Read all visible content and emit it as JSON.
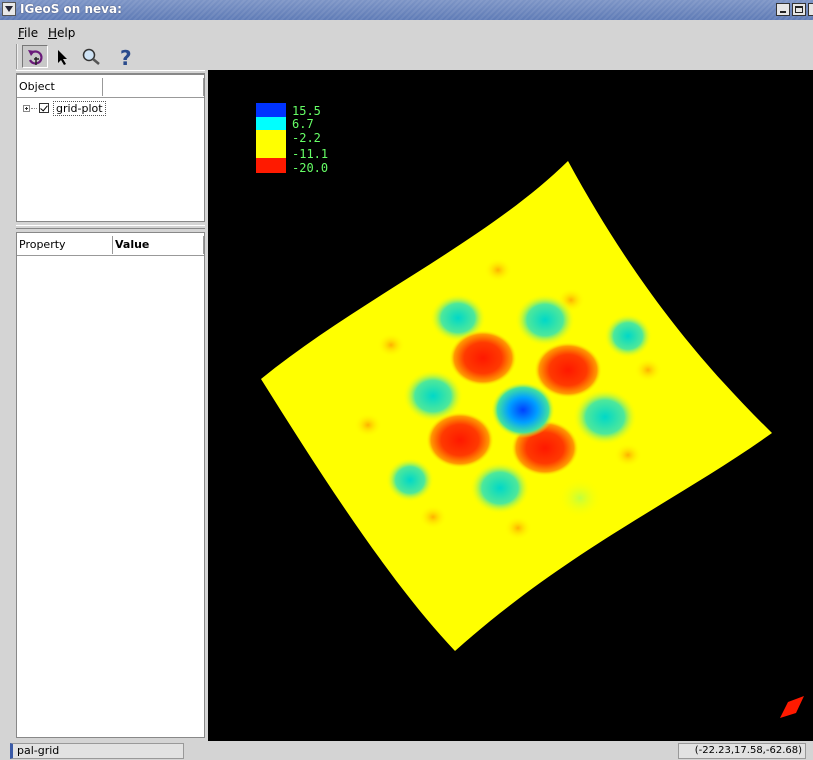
{
  "window": {
    "title": "IGeoS on neva:"
  },
  "menu": {
    "file_label": "File",
    "file_rest": "ile",
    "file_key": "F",
    "help_key": "H",
    "help_rest": "elp"
  },
  "toolbar": {
    "tools": [
      "rotate-icon",
      "select-arrow-icon",
      "zoom-icon",
      "help-icon"
    ]
  },
  "object_panel": {
    "columns": [
      "Object",
      ""
    ],
    "tree": [
      {
        "label": "grid-plot",
        "checked": true,
        "expanded": false
      }
    ]
  },
  "property_panel": {
    "columns": [
      "Property",
      "Value"
    ]
  },
  "legend": {
    "values": [
      "15.5",
      "6.7",
      "-2.2",
      "-11.1",
      "-20.0"
    ],
    "colors": [
      "#0033ff",
      "#00ffff",
      "#ffff00",
      "#ff3300",
      "#ff0000"
    ]
  },
  "status": {
    "left": "pal-grid",
    "coords": "(-22.23,17.58,-62.68)"
  },
  "colors": {
    "background": "#000000",
    "surface": "#ffff00",
    "accent": "#5f7bb6"
  }
}
